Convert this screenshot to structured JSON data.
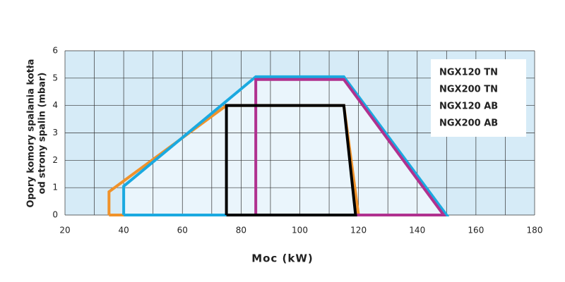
{
  "chart_data": {
    "type": "area-polygon",
    "xlabel": "Moc (kW)",
    "ylabel": [
      "Opory komory spalania kotła",
      "od strony spalin (mbar)"
    ],
    "xlim": [
      20,
      180
    ],
    "xticks": [
      20,
      40,
      60,
      80,
      100,
      120,
      140,
      160,
      180
    ],
    "ylim": [
      0,
      6
    ],
    "yticks": [
      0,
      1,
      2,
      3,
      4,
      5,
      6
    ],
    "grid": true,
    "legend": "upper right",
    "series": [
      {
        "name": "NGX120 TN",
        "color": "#000000",
        "x": [
          75,
          75,
          115,
          119,
          75
        ],
        "values": [
          0,
          4,
          4,
          0,
          0
        ]
      },
      {
        "name": "NGX200 TN",
        "color": "#b0318f",
        "x": [
          85,
          85,
          115,
          149,
          85
        ],
        "values": [
          0,
          4.95,
          4.95,
          0,
          0
        ]
      },
      {
        "name": "NGX120 AB",
        "color": "#f0922a",
        "x": [
          35,
          35,
          75,
          115,
          120,
          35
        ],
        "values": [
          0,
          0.85,
          4,
          4,
          0,
          0
        ]
      },
      {
        "name": "NGX200 AB",
        "color": "#1aa9e0",
        "fill": "#eaf5fc",
        "x": [
          40,
          40,
          85,
          115,
          150,
          40
        ],
        "values": [
          0,
          1.05,
          5.05,
          5.05,
          0,
          0
        ]
      }
    ]
  }
}
